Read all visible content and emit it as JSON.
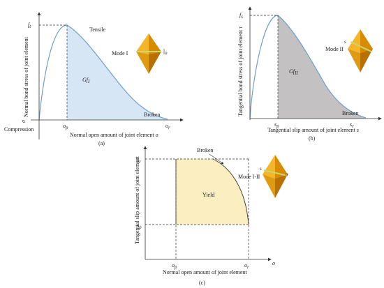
{
  "panel_a": {
    "y_label": "Normal bond stress of joint element",
    "y_symbol": "σ",
    "x_label": "Normal open amount of joint element",
    "x_symbol": "o",
    "peak_label": "f",
    "peak_sub": "t",
    "tick_op": "o",
    "tick_op_sub": "p",
    "tick_or": "o",
    "tick_or_sub": "r",
    "tensile": "Tensile",
    "compression": "Compression",
    "broken": "Broken",
    "area_label": "Gf",
    "area_sub": "I",
    "mode": "Mode I",
    "mode_symbol": "o",
    "caption": "(a)"
  },
  "panel_b": {
    "y_label": "Tangential bond stress of joint element",
    "y_symbol": "τ",
    "x_label": "Tangential slip amount of joint element",
    "x_symbol": "s",
    "peak_label": "f",
    "peak_sub": "s",
    "tick_sp": "s",
    "tick_sp_sub": "p",
    "tick_sr": "s",
    "tick_sr_sub": "r",
    "broken": "Broken",
    "area_label": "Gf",
    "area_sub": "II",
    "mode": "Mode II",
    "mode_symbol": "s",
    "caption": "(b)"
  },
  "panel_c": {
    "y_label": "Tangential slip amount of joint element",
    "x_label": "Normal open amount of joint element",
    "x_symbol": "o",
    "tick_sr": "s",
    "tick_sr_sub": "r",
    "tick_sp": "s",
    "tick_sp_sub": "p",
    "tick_op": "o",
    "tick_op_sub": "p",
    "tick_or": "o",
    "tick_or_sub": "r",
    "broken": "Broken",
    "region_label": "Yield",
    "mode": "Mode I-II",
    "mode_symbol_s": "s",
    "mode_symbol_o": "o",
    "caption": "(c)"
  },
  "colors": {
    "curve": "#6f9fd0",
    "area_a": "#d6e6f5",
    "area_b": "#c4c1c3",
    "area_c": "#fbeec0",
    "gem_dark": "#d88a00",
    "gem_light": "#f5b52a",
    "gem_band": "#c8d86a"
  }
}
